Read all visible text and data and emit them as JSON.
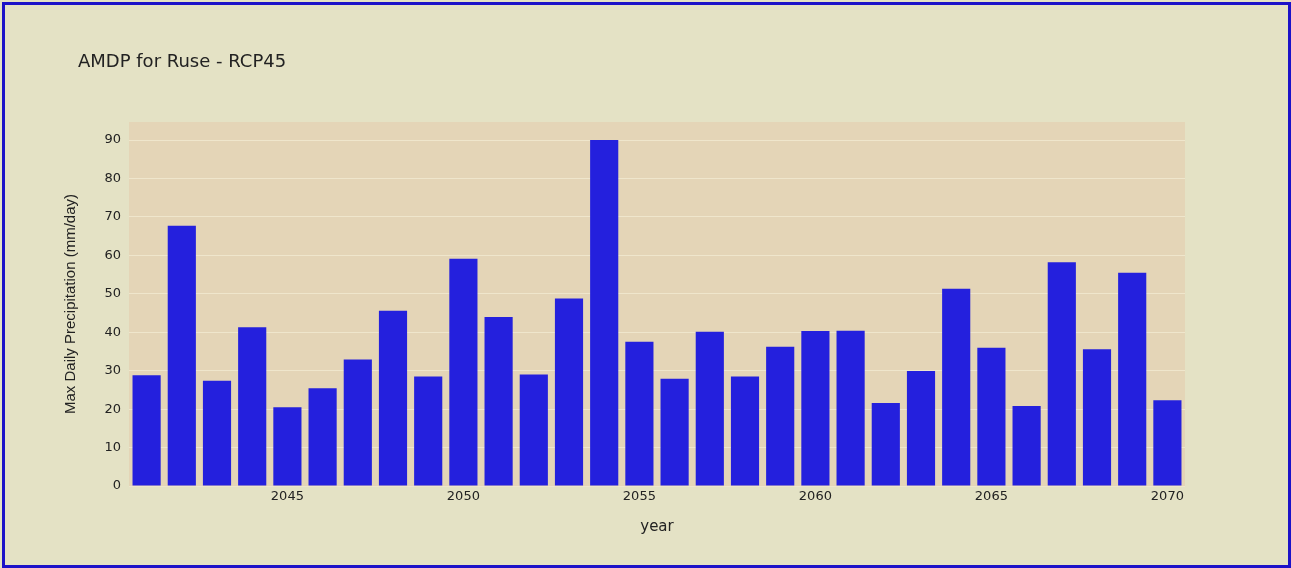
{
  "chart_data": {
    "type": "bar",
    "title": "AMDP for Ruse - RCP45",
    "xlabel": "year",
    "ylabel": "Max Daily Precipitation (mm/day)",
    "x": [
      2041,
      2042,
      2043,
      2044,
      2045,
      2046,
      2047,
      2048,
      2049,
      2050,
      2051,
      2052,
      2053,
      2054,
      2055,
      2056,
      2057,
      2058,
      2059,
      2060,
      2061,
      2062,
      2063,
      2064,
      2065,
      2066,
      2067,
      2068,
      2069,
      2070
    ],
    "values": [
      28.8,
      67.7,
      27.4,
      41.3,
      20.5,
      25.4,
      32.9,
      45.6,
      28.5,
      59.1,
      44.0,
      29.0,
      48.8,
      90.0,
      37.5,
      27.9,
      40.1,
      28.5,
      36.2,
      40.3,
      40.4,
      21.6,
      29.9,
      51.3,
      36.0,
      20.8,
      58.2,
      35.6,
      55.5,
      22.3
    ],
    "color": "#2420dd",
    "xlim": [
      2040.5,
      2070.5
    ],
    "xticks": [
      2045,
      2050,
      2055,
      2060,
      2065,
      2070
    ],
    "ylim": [
      0,
      94.7
    ],
    "yticks": [
      0,
      10,
      20,
      30,
      40,
      50,
      60,
      70,
      80,
      90
    ],
    "grid": "y"
  }
}
